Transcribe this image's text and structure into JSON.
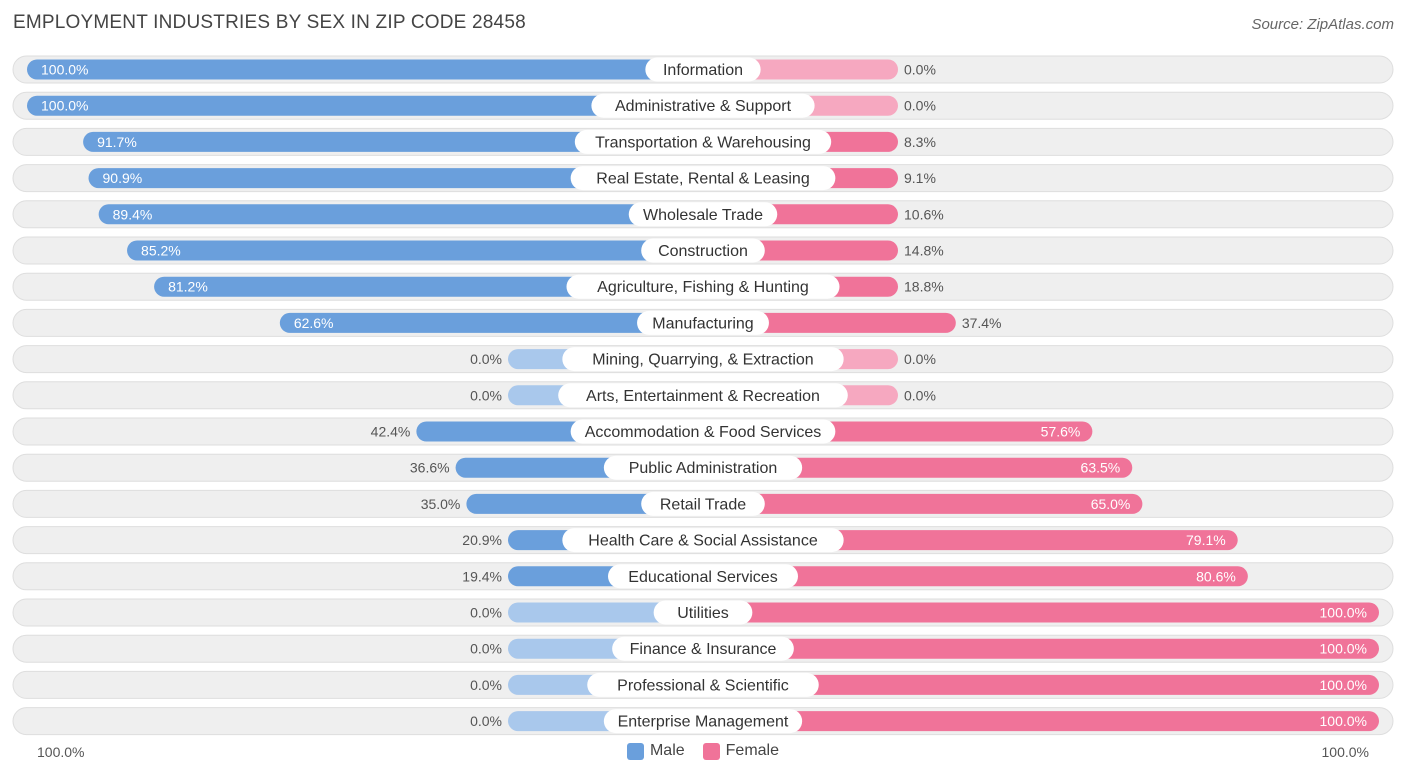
{
  "title": "EMPLOYMENT INDUSTRIES BY SEX IN ZIP CODE 28458",
  "source": "Source: ZipAtlas.com",
  "colors": {
    "male": "#6a9fdc",
    "male_light": "#a9c8ec",
    "female": "#f07399",
    "female_light": "#f6a8c0",
    "row_bg": "#efefef"
  },
  "legend": {
    "male_label": "Male",
    "female_label": "Female"
  },
  "axis": {
    "left_label": "100.0%",
    "right_label": "100.0%"
  },
  "chart_data": {
    "type": "bar",
    "orientation": "horizontal-diverging",
    "title": "EMPLOYMENT INDUSTRIES BY SEX IN ZIP CODE 28458",
    "xlim": [
      -100,
      100
    ],
    "series_names": [
      "Male",
      "Female"
    ],
    "categories": [
      "Information",
      "Administrative & Support",
      "Transportation & Warehousing",
      "Real Estate, Rental & Leasing",
      "Wholesale Trade",
      "Construction",
      "Agriculture, Fishing & Hunting",
      "Manufacturing",
      "Mining, Quarrying, & Extraction",
      "Arts, Entertainment & Recreation",
      "Accommodation & Food Services",
      "Public Administration",
      "Retail Trade",
      "Health Care & Social Assistance",
      "Educational Services",
      "Utilities",
      "Finance & Insurance",
      "Professional & Scientific",
      "Enterprise Management"
    ],
    "male": [
      100.0,
      100.0,
      91.7,
      90.9,
      89.4,
      85.2,
      81.2,
      62.6,
      0.0,
      0.0,
      42.4,
      36.6,
      35.0,
      20.9,
      19.4,
      0.0,
      0.0,
      0.0,
      0.0
    ],
    "female": [
      0.0,
      0.0,
      8.3,
      9.1,
      10.6,
      14.8,
      18.8,
      37.4,
      0.0,
      0.0,
      57.6,
      63.5,
      65.0,
      79.1,
      80.6,
      100.0,
      100.0,
      100.0,
      100.0
    ],
    "male_labels": [
      "100.0%",
      "100.0%",
      "91.7%",
      "90.9%",
      "89.4%",
      "85.2%",
      "81.2%",
      "62.6%",
      "0.0%",
      "0.0%",
      "42.4%",
      "36.6%",
      "35.0%",
      "20.9%",
      "19.4%",
      "0.0%",
      "0.0%",
      "0.0%",
      "0.0%"
    ],
    "female_labels": [
      "0.0%",
      "0.0%",
      "8.3%",
      "9.1%",
      "10.6%",
      "14.8%",
      "18.8%",
      "37.4%",
      "0.0%",
      "0.0%",
      "57.6%",
      "63.5%",
      "65.0%",
      "79.1%",
      "80.6%",
      "100.0%",
      "100.0%",
      "100.0%",
      "100.0%"
    ]
  }
}
